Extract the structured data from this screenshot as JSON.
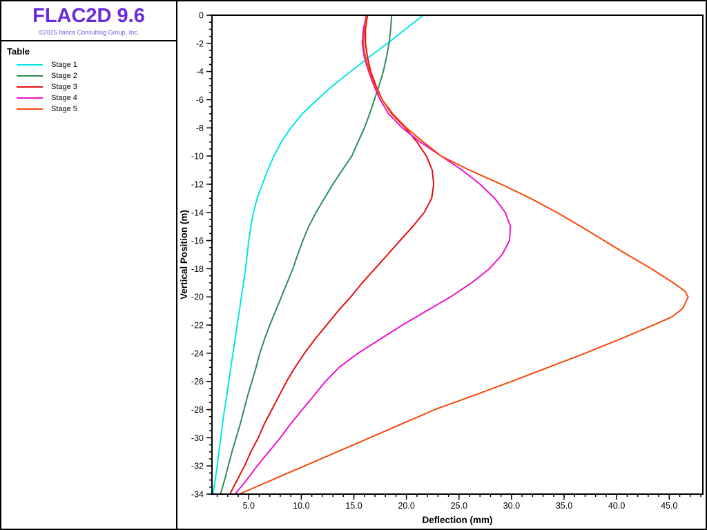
{
  "app": {
    "title": "FLAC2D 9.6",
    "copyright": "©2025 Itasca Consulting Group, Inc.",
    "title_color": "#6A2BE0",
    "copyright_color": "#7A55E0"
  },
  "legend": {
    "title": "Table",
    "items": [
      {
        "label": "Stage 1",
        "color": "#00E6E6"
      },
      {
        "label": "Stage 2",
        "color": "#2E8B57"
      },
      {
        "label": "Stage 3",
        "color": "#E40D0D"
      },
      {
        "label": "Stage 4",
        "color": "#EE10CC"
      },
      {
        "label": "Stage 5",
        "color": "#F74708"
      }
    ]
  },
  "chart_data": {
    "type": "line",
    "title": "",
    "xlabel": "Deflection (mm)",
    "ylabel": "Vertical Position (m)",
    "xlim": [
      1.5,
      48.2
    ],
    "ylim": [
      -34,
      0
    ],
    "x_major_start": 5,
    "x_major_step": 5,
    "x_major_end": 45,
    "x_minor_step": 1,
    "y_major_step": 2,
    "y_minor_step": 0.5,
    "grid": false,
    "legend_position": "sidebar-top-left",
    "series": [
      {
        "name": "Stage 1",
        "color": "#00E6E6",
        "points": [
          [
            21.6,
            0
          ],
          [
            19.9,
            -1
          ],
          [
            18.2,
            -2
          ],
          [
            16.4,
            -3
          ],
          [
            14.7,
            -4
          ],
          [
            13.0,
            -5
          ],
          [
            11.5,
            -6
          ],
          [
            10.1,
            -7
          ],
          [
            9.0,
            -8
          ],
          [
            8.1,
            -9
          ],
          [
            7.4,
            -10
          ],
          [
            6.8,
            -11
          ],
          [
            6.3,
            -12
          ],
          [
            5.8,
            -13
          ],
          [
            5.45,
            -14
          ],
          [
            5.2,
            -15
          ],
          [
            5.0,
            -16
          ],
          [
            4.85,
            -17
          ],
          [
            4.7,
            -18
          ],
          [
            4.5,
            -19
          ],
          [
            4.3,
            -20
          ],
          [
            4.1,
            -21
          ],
          [
            3.9,
            -22
          ],
          [
            3.7,
            -23
          ],
          [
            3.5,
            -24
          ],
          [
            3.3,
            -25
          ],
          [
            3.1,
            -26
          ],
          [
            2.9,
            -27
          ],
          [
            2.7,
            -28
          ],
          [
            2.5,
            -29
          ],
          [
            2.35,
            -30
          ],
          [
            2.15,
            -31
          ],
          [
            2.0,
            -32
          ],
          [
            1.8,
            -33
          ],
          [
            1.6,
            -34
          ]
        ]
      },
      {
        "name": "Stage 2",
        "color": "#2E8B57",
        "points": [
          [
            18.6,
            0
          ],
          [
            18.5,
            -1
          ],
          [
            18.35,
            -2
          ],
          [
            18.1,
            -3
          ],
          [
            17.8,
            -4
          ],
          [
            17.4,
            -5
          ],
          [
            16.95,
            -6
          ],
          [
            16.5,
            -7
          ],
          [
            16.0,
            -8
          ],
          [
            15.4,
            -9
          ],
          [
            14.8,
            -10
          ],
          [
            13.9,
            -11
          ],
          [
            13.0,
            -12
          ],
          [
            12.2,
            -13
          ],
          [
            11.4,
            -14
          ],
          [
            10.7,
            -15
          ],
          [
            10.15,
            -16
          ],
          [
            9.65,
            -17
          ],
          [
            9.2,
            -18
          ],
          [
            8.65,
            -19
          ],
          [
            8.1,
            -20
          ],
          [
            7.55,
            -21
          ],
          [
            7.0,
            -22
          ],
          [
            6.5,
            -23
          ],
          [
            6.05,
            -24
          ],
          [
            5.7,
            -25
          ],
          [
            5.3,
            -26
          ],
          [
            4.9,
            -27
          ],
          [
            4.55,
            -28
          ],
          [
            4.2,
            -29
          ],
          [
            3.8,
            -30
          ],
          [
            3.4,
            -31
          ],
          [
            3.05,
            -32
          ],
          [
            2.7,
            -33
          ],
          [
            2.3,
            -34
          ]
        ]
      },
      {
        "name": "Stage 3",
        "color": "#E40D0D",
        "points": [
          [
            16.3,
            0
          ],
          [
            16.1,
            -1
          ],
          [
            16.1,
            -2
          ],
          [
            16.3,
            -3
          ],
          [
            16.6,
            -4
          ],
          [
            17.1,
            -5
          ],
          [
            17.7,
            -6
          ],
          [
            18.6,
            -7
          ],
          [
            19.9,
            -8
          ],
          [
            21.0,
            -9
          ],
          [
            21.9,
            -10
          ],
          [
            22.45,
            -11
          ],
          [
            22.6,
            -12
          ],
          [
            22.4,
            -13
          ],
          [
            21.7,
            -14
          ],
          [
            20.6,
            -15
          ],
          [
            19.4,
            -16
          ],
          [
            18.2,
            -17
          ],
          [
            17.0,
            -18
          ],
          [
            15.8,
            -19
          ],
          [
            14.7,
            -20
          ],
          [
            13.5,
            -21
          ],
          [
            12.4,
            -22
          ],
          [
            11.3,
            -23
          ],
          [
            10.3,
            -24
          ],
          [
            9.4,
            -25
          ],
          [
            8.6,
            -26
          ],
          [
            7.9,
            -27
          ],
          [
            7.2,
            -28
          ],
          [
            6.5,
            -29
          ],
          [
            5.9,
            -30
          ],
          [
            5.2,
            -31
          ],
          [
            4.6,
            -32
          ],
          [
            3.9,
            -33
          ],
          [
            3.2,
            -34
          ]
        ]
      },
      {
        "name": "Stage 4",
        "color": "#EE10CC",
        "points": [
          [
            16.2,
            0
          ],
          [
            15.9,
            -1
          ],
          [
            15.8,
            -2
          ],
          [
            16.0,
            -3
          ],
          [
            16.4,
            -4
          ],
          [
            16.9,
            -5
          ],
          [
            17.5,
            -6
          ],
          [
            18.3,
            -7
          ],
          [
            19.6,
            -8
          ],
          [
            21.3,
            -9
          ],
          [
            23.3,
            -10
          ],
          [
            25.3,
            -11
          ],
          [
            27.0,
            -12
          ],
          [
            28.4,
            -13
          ],
          [
            29.4,
            -14
          ],
          [
            29.9,
            -15
          ],
          [
            29.8,
            -16
          ],
          [
            29.1,
            -17
          ],
          [
            27.9,
            -18
          ],
          [
            26.2,
            -19
          ],
          [
            24.2,
            -20
          ],
          [
            21.9,
            -21
          ],
          [
            19.6,
            -22
          ],
          [
            17.5,
            -23
          ],
          [
            15.4,
            -24
          ],
          [
            13.6,
            -25
          ],
          [
            12.3,
            -26
          ],
          [
            11.2,
            -27
          ],
          [
            10.1,
            -28
          ],
          [
            9.0,
            -29
          ],
          [
            8.0,
            -30
          ],
          [
            6.9,
            -31
          ],
          [
            5.8,
            -32
          ],
          [
            4.8,
            -33
          ],
          [
            3.7,
            -34
          ]
        ]
      },
      {
        "name": "Stage 5",
        "color": "#F74708",
        "points": [
          [
            16.25,
            0
          ],
          [
            16.0,
            -1
          ],
          [
            15.9,
            -2
          ],
          [
            16.1,
            -3
          ],
          [
            16.5,
            -4
          ],
          [
            17.0,
            -5
          ],
          [
            17.7,
            -6
          ],
          [
            18.7,
            -7
          ],
          [
            20.0,
            -8
          ],
          [
            21.6,
            -9
          ],
          [
            23.3,
            -10
          ],
          [
            26.0,
            -11
          ],
          [
            29.0,
            -12
          ],
          [
            31.8,
            -13
          ],
          [
            34.3,
            -14
          ],
          [
            36.6,
            -15
          ],
          [
            38.8,
            -16
          ],
          [
            41.0,
            -17
          ],
          [
            43.3,
            -18
          ],
          [
            45.4,
            -19
          ],
          [
            46.5,
            -19.6
          ],
          [
            46.8,
            -20
          ],
          [
            46.3,
            -20.8
          ],
          [
            45.3,
            -21.4
          ],
          [
            43.5,
            -22
          ],
          [
            40.3,
            -23
          ],
          [
            37.0,
            -24
          ],
          [
            33.5,
            -25
          ],
          [
            30.0,
            -26
          ],
          [
            26.4,
            -27
          ],
          [
            22.7,
            -28
          ],
          [
            19.6,
            -29
          ],
          [
            16.5,
            -30
          ],
          [
            13.4,
            -31
          ],
          [
            10.3,
            -32
          ],
          [
            7.2,
            -33
          ],
          [
            4.1,
            -34
          ]
        ]
      }
    ]
  }
}
